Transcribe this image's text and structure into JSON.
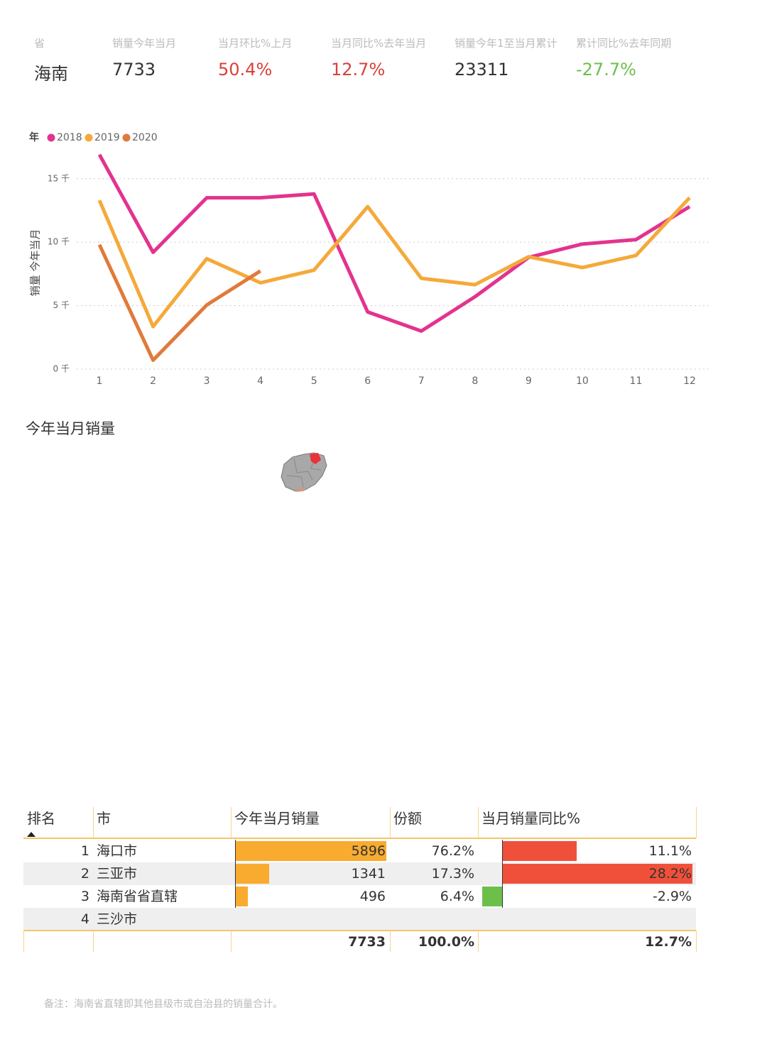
{
  "kpis": {
    "headers": [
      "省",
      "销量今年当月",
      "当月环比%上月",
      "当月同比%去年当月",
      "销量今年1至当月累计",
      "累计同比%去年同期"
    ],
    "values": [
      "海南",
      "7733",
      "50.4%",
      "12.7%",
      "23311",
      "-27.7%"
    ]
  },
  "chart_data": {
    "type": "line",
    "legend_title": "年",
    "y_label": "销量 今年当月",
    "categories": [
      "1",
      "2",
      "3",
      "4",
      "5",
      "6",
      "7",
      "8",
      "9",
      "10",
      "11",
      "12"
    ],
    "series": [
      {
        "name": "2018",
        "color": "#e3338f",
        "values": [
          16.9,
          9.2,
          13.5,
          13.5,
          13.8,
          4.5,
          3.0,
          5.7,
          8.8,
          9.85,
          10.2,
          12.8
        ]
      },
      {
        "name": "2019",
        "color": "#f5a93a",
        "values": [
          13.3,
          3.35,
          8.7,
          6.8,
          7.8,
          12.8,
          7.15,
          6.65,
          8.85,
          8.0,
          8.95,
          13.5
        ]
      },
      {
        "name": "2020",
        "color": "#e07a3a",
        "values": [
          9.8,
          0.7,
          5.05,
          7.733,
          null,
          null,
          null,
          null,
          null,
          null,
          null,
          null
        ]
      }
    ],
    "ylim": [
      0,
      17
    ],
    "yticks": [
      {
        "value": 0,
        "label": "0 千"
      },
      {
        "value": 5,
        "label": "5 千"
      },
      {
        "value": 10,
        "label": "10 千"
      },
      {
        "value": 15,
        "label": "15 千"
      }
    ],
    "grid": true,
    "legend": "top-left"
  },
  "map": {
    "title": "今年当月销量"
  },
  "table": {
    "columns": [
      "排名",
      "市",
      "今年当月销量",
      "份额",
      "当月销量同比%"
    ],
    "rows": [
      {
        "rank": "1",
        "city": "海口市",
        "sales": 5896,
        "share": "76.2%",
        "yoy": 11.1,
        "yoy_label": "11.1%"
      },
      {
        "rank": "2",
        "city": "三亚市",
        "sales": 1341,
        "share": "17.3%",
        "yoy": 28.2,
        "yoy_label": "28.2%"
      },
      {
        "rank": "3",
        "city": "海南省省直辖",
        "sales": 496,
        "share": "6.4%",
        "yoy": -2.9,
        "yoy_label": "-2.9%"
      },
      {
        "rank": "4",
        "city": "三沙市"
      }
    ],
    "total": {
      "sales": "7733",
      "share": "100.0%",
      "yoy": "12.7%"
    }
  },
  "note": "备注：海南省直辖即其他县级市或自治县的销量合计。"
}
